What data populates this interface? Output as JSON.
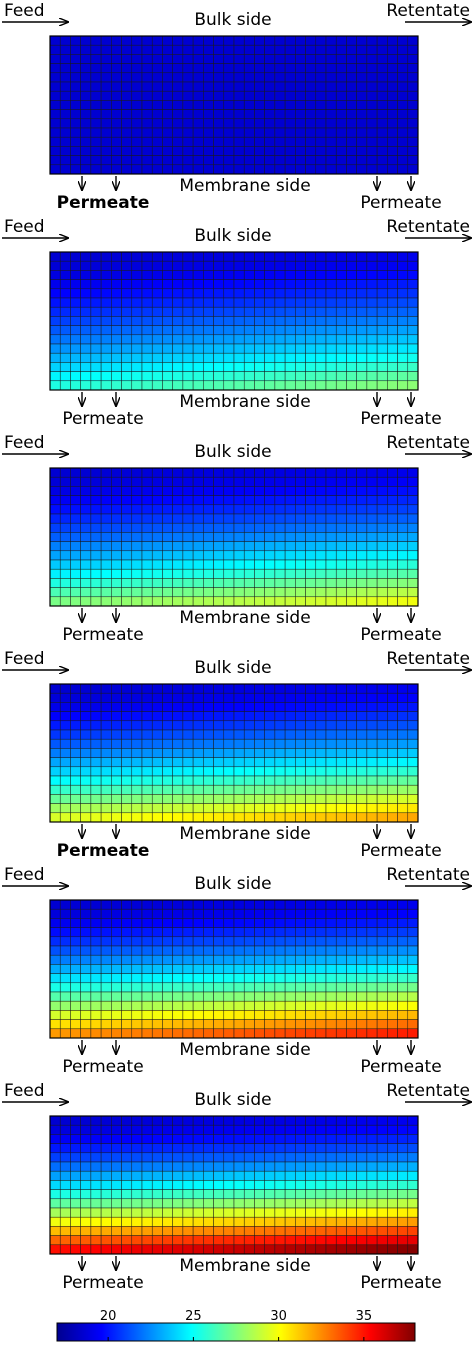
{
  "labels": {
    "feed": "Feed",
    "retentate": "Retentate",
    "bulk": "Bulk side",
    "membrane": "Membrane side",
    "permeate": "Permeate"
  },
  "panels": [
    {
      "level": 0.0,
      "gradient": 0.0
    },
    {
      "level": 0.35,
      "gradient": 0.7
    },
    {
      "level": 0.45,
      "gradient": 0.75
    },
    {
      "level": 0.55,
      "gradient": 0.8
    },
    {
      "level": 0.7,
      "gradient": 0.8
    },
    {
      "level": 0.85,
      "gradient": 0.85
    }
  ],
  "colorbar": {
    "ticks": [
      "20",
      "25",
      "30",
      "35"
    ],
    "tick_values": [
      20,
      25,
      30,
      35
    ],
    "min": 17,
    "max": 38
  }
}
